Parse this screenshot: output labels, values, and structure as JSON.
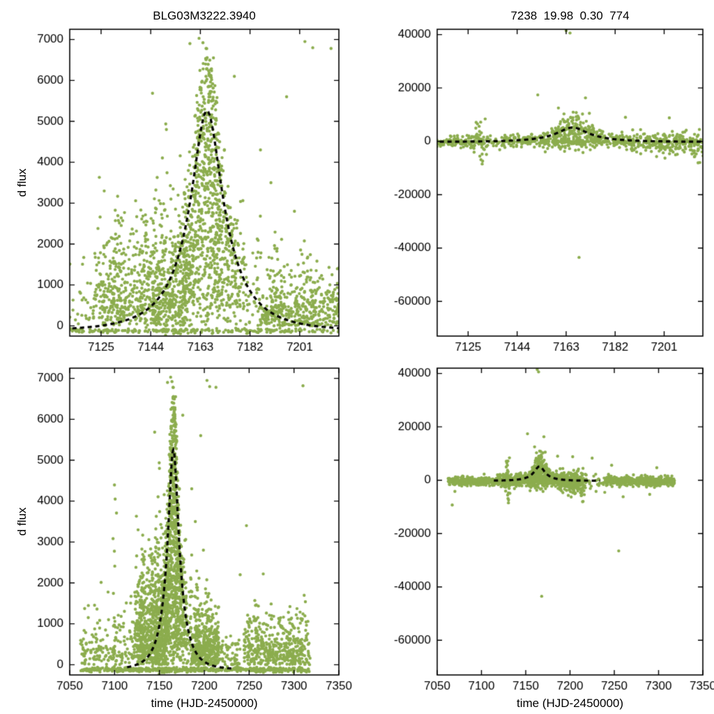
{
  "figure": {
    "background": "#ffffff",
    "point_color": "#8CAD4E",
    "curve_color": "#000000",
    "axis_color": "#000000",
    "marker_radius": 2.2,
    "curve_dash": [
      6,
      5
    ],
    "curve_width": 3.2
  },
  "chart_data": {
    "type": "scatter",
    "charts": [
      {
        "id": "flux-fit-window",
        "title": "BLG03M3222.3940",
        "xlabel": "",
        "ylabel": "d flux",
        "xlim": [
          7113,
          7216
        ],
        "ylim": [
          -250,
          7250
        ],
        "xticks": [
          7125,
          7144,
          7163,
          7182,
          7201
        ],
        "yticks": [
          0,
          1000,
          2000,
          3000,
          4000,
          5000,
          6000,
          7000
        ],
        "series": "flux",
        "model": "model_flux",
        "grid": false,
        "legend": "none"
      },
      {
        "id": "resid-fit-window",
        "title": "7238  19.98  0.30  774",
        "xlabel": "",
        "ylabel": "",
        "xlim": [
          7113,
          7216
        ],
        "ylim": [
          -73000,
          42000
        ],
        "xticks": [
          7125,
          7144,
          7163,
          7182,
          7201
        ],
        "yticks": [
          -60000,
          -40000,
          -20000,
          0,
          20000,
          40000
        ],
        "series": "resid",
        "model": "model_resid",
        "grid": false,
        "legend": "none"
      },
      {
        "id": "flux-full-range",
        "title": "",
        "xlabel": "time (HJD-2450000)",
        "ylabel": "d flux",
        "xlim": [
          7050,
          7350
        ],
        "ylim": [
          -250,
          7250
        ],
        "xticks": [
          7050,
          7100,
          7150,
          7200,
          7250,
          7300,
          7350
        ],
        "yticks": [
          0,
          1000,
          2000,
          3000,
          4000,
          5000,
          6000,
          7000
        ],
        "series": "flux",
        "model": "model_flux",
        "grid": false,
        "legend": "none"
      },
      {
        "id": "resid-full-range",
        "title": "",
        "xlabel": "time (HJD-2450000)",
        "ylabel": "",
        "xlim": [
          7050,
          7350
        ],
        "ylim": [
          -73000,
          42000
        ],
        "xticks": [
          7050,
          7100,
          7150,
          7200,
          7250,
          7300,
          7350
        ],
        "yticks": [
          -60000,
          -40000,
          -20000,
          0,
          20000,
          40000
        ],
        "series": "resid",
        "model": "model_resid",
        "grid": false,
        "legend": "none"
      }
    ],
    "models": {
      "model_flux": {
        "t0": 7165.5,
        "tE": 19.98,
        "u0": 0.3,
        "f0": 2200,
        "baseline": -120,
        "range": [
          7114,
          7234
        ]
      },
      "model_resid": {
        "t0": 7165.5,
        "tE": 19.98,
        "u0": 0.3,
        "f0": 2200,
        "baseline": -200,
        "range": [
          7114,
          7234
        ]
      }
    },
    "series": {
      "flux": {
        "seed": 20150417,
        "model": "model_flux",
        "clusters": [
          {
            "type": "hline",
            "x0": 7062,
            "x1": 7318,
            "n": 520,
            "y": -120,
            "ysigma": 28
          },
          {
            "type": "halfnorm",
            "x0": 7062,
            "x1": 7122,
            "n": 170,
            "ysigma": 620
          },
          {
            "type": "col",
            "x": 7100,
            "xsigma": 1.0,
            "n": 12,
            "ymin": 100,
            "ymax": 4400
          },
          {
            "type": "halfnorm",
            "x0": 7122,
            "x1": 7158,
            "n": 620,
            "ysigma": 1150
          },
          {
            "type": "col",
            "x": 7131,
            "xsigma": 1.2,
            "n": 26,
            "ymin": 100,
            "ymax": 3400
          },
          {
            "type": "col",
            "x": 7142,
            "xsigma": 1.2,
            "n": 24,
            "ymin": 100,
            "ymax": 2700
          },
          {
            "type": "halfnorm",
            "x0": 7144,
            "x1": 7160,
            "n": 120,
            "ysigma": 1800
          },
          {
            "type": "peak",
            "t0": 7165.5,
            "tsigma": 5.5,
            "n": 620,
            "s0": 0.12,
            "s1": 1.28,
            "noise": 260
          },
          {
            "type": "peak",
            "t0": 7165.5,
            "tsigma": 9.0,
            "n": 260,
            "s0": 0.3,
            "s1": 1.15,
            "noise": 380
          },
          {
            "type": "halfnorm",
            "x0": 7156,
            "x1": 7186,
            "n": 170,
            "ysigma": 1500
          },
          {
            "type": "halfnorm",
            "x0": 7186,
            "x1": 7216,
            "n": 430,
            "ysigma": 680
          },
          {
            "type": "col",
            "x": 7192,
            "xsigma": 1.2,
            "n": 18,
            "ymin": 100,
            "ymax": 2300
          },
          {
            "type": "halfnorm",
            "x0": 7216,
            "x1": 7240,
            "n": 55,
            "ysigma": 420
          },
          {
            "type": "halfnorm",
            "x0": 7244,
            "x1": 7318,
            "n": 430,
            "ysigma": 620
          },
          {
            "type": "col",
            "x": 7258,
            "xsigma": 1.5,
            "n": 16,
            "ymin": 100,
            "ymax": 1700
          }
        ],
        "outliers": [
          [
            7159,
            6900
          ],
          [
            7162.5,
            7030
          ],
          [
            7165,
            6400
          ],
          [
            7168,
            6550
          ],
          [
            7176,
            6100
          ],
          [
            7203,
            6950
          ],
          [
            7206,
            6800
          ],
          [
            7213,
            6780
          ],
          [
            7150,
            4800
          ],
          [
            7196,
            5600
          ],
          [
            7190,
            3500
          ],
          [
            7186,
            4300
          ],
          [
            7199,
            2800
          ],
          [
            7310,
            6820
          ],
          [
            7247,
            3400
          ],
          [
            7240,
            2200
          ]
        ]
      },
      "resid": {
        "seed": 99,
        "model": "model_resid",
        "clusters": [
          {
            "type": "hline",
            "x0": 7062,
            "x1": 7215,
            "n": 200,
            "y": -150,
            "ysigma": 60
          },
          {
            "type": "hline",
            "x0": 7240,
            "x1": 7318,
            "n": 80,
            "y": -150,
            "ysigma": 60
          },
          {
            "type": "band",
            "x0": 7062,
            "x1": 7118,
            "n": 330,
            "ymean": -300,
            "ysigma": 800
          },
          {
            "type": "band",
            "x0": 7118,
            "x1": 7186,
            "n": 430,
            "ymean": 0,
            "ysigma": 1400
          },
          {
            "type": "peak",
            "t0": 7167,
            "tsigma": 7,
            "n": 170,
            "s0": 0.4,
            "s1": 1.7,
            "noise": 1400
          },
          {
            "type": "band",
            "x0": 7186,
            "x1": 7216,
            "n": 260,
            "ymean": -300,
            "ysigma": 1900
          },
          {
            "type": "band",
            "x0": 7216,
            "x1": 7240,
            "n": 28,
            "ymean": -400,
            "ysigma": 1500
          },
          {
            "type": "band",
            "x0": 7240,
            "x1": 7318,
            "n": 430,
            "ymean": -300,
            "ysigma": 900
          },
          {
            "type": "col",
            "x": 7130,
            "xsigma": 1.0,
            "n": 16,
            "ymin": -8500,
            "ymax": 8500
          },
          {
            "type": "col",
            "x": 7214,
            "xsigma": 1.2,
            "n": 10,
            "ymin": -10500,
            "ymax": 2000
          }
        ],
        "outliers": [
          [
            7163,
            41500
          ],
          [
            7164.5,
            40600
          ],
          [
            7168,
            -43500
          ],
          [
            7152,
            17400
          ],
          [
            7170.5,
            16300
          ],
          [
            7160,
            12500
          ],
          [
            7172,
            10500
          ],
          [
            7186,
            9000
          ],
          [
            7203,
            8800
          ],
          [
            7225,
            8300
          ],
          [
            7255,
            -26500
          ],
          [
            7290,
            -5300
          ],
          [
            7298,
            4700
          ],
          [
            7067,
            -9300
          ],
          [
            7070,
            -4200
          ],
          [
            7247,
            5600
          ],
          [
            7260,
            -6200
          ]
        ]
      }
    }
  }
}
